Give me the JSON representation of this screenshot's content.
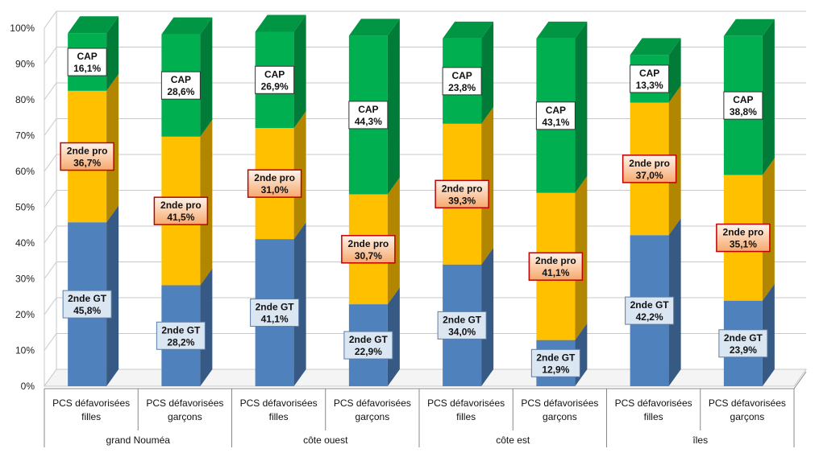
{
  "chart_data": {
    "type": "bar",
    "stacked": true,
    "three_d": true,
    "y_unit": "%",
    "ylim": [
      0,
      100
    ],
    "yticks": [
      "0%",
      "10%",
      "20%",
      "30%",
      "40%",
      "50%",
      "60%",
      "70%",
      "80%",
      "90%",
      "100%"
    ],
    "groups": [
      {
        "label": "grand Nouméa",
        "categories": [
          "PCS défavorisées filles",
          "PCS défavorisées garçons"
        ]
      },
      {
        "label": "côte ouest",
        "categories": [
          "PCS défavorisées filles",
          "PCS défavorisées garçons"
        ]
      },
      {
        "label": "côte est",
        "categories": [
          "PCS défavorisées filles",
          "PCS défavorisées garçons"
        ]
      },
      {
        "label": "îles",
        "categories": [
          "PCS défavorisées filles",
          "PCS défavorisées garçons"
        ]
      }
    ],
    "category_lines": [
      [
        "PCS défavorisées",
        "filles"
      ],
      [
        "PCS défavorisées",
        "garçons"
      ]
    ],
    "series": [
      {
        "name": "2nde GT",
        "color": "#4f81bd",
        "values": [
          45.8,
          28.2,
          41.1,
          22.9,
          34.0,
          12.9,
          42.2,
          23.9
        ],
        "labels": [
          "45,8%",
          "28,2%",
          "41,1%",
          "22,9%",
          "34,0%",
          "12,9%",
          "42,2%",
          "23,9%"
        ]
      },
      {
        "name": "2nde pro",
        "color": "#ffc000",
        "values": [
          36.7,
          41.5,
          31.0,
          30.7,
          39.3,
          41.1,
          37.0,
          35.1
        ],
        "labels": [
          "36,7%",
          "41,5%",
          "31,0%",
          "30,7%",
          "39,3%",
          "41,1%",
          "37,0%",
          "35,1%"
        ]
      },
      {
        "name": "CAP",
        "color": "#00b050",
        "values": [
          16.1,
          28.6,
          26.9,
          44.3,
          23.8,
          43.1,
          13.3,
          38.8
        ],
        "labels": [
          "16,1%",
          "28,6%",
          "26,9%",
          "44,3%",
          "23,8%",
          "43,1%",
          "13,3%",
          "38,8%"
        ]
      }
    ]
  }
}
